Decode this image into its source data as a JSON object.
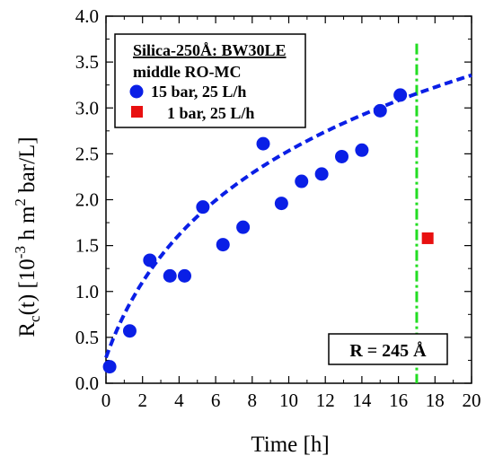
{
  "chart_data": {
    "type": "scatter",
    "xlabel": "Time [h]",
    "ylabel_main": "R",
    "ylabel_sub": "c",
    "ylabel_rest_a": "(t) [10",
    "ylabel_exp": "-3",
    "ylabel_rest_b": " h m",
    "ylabel_exp2": "2",
    "ylabel_rest_c": " bar/L]",
    "xlim": [
      0,
      20
    ],
    "ylim": [
      0,
      4
    ],
    "xticks": [
      0,
      2,
      4,
      6,
      8,
      10,
      12,
      14,
      16,
      18,
      20
    ],
    "yticks": [
      "0.0",
      "0.5",
      "1.0",
      "1.5",
      "2.0",
      "2.5",
      "3.0",
      "3.5",
      "4.0"
    ],
    "legend": {
      "placement": "top-left",
      "title_line1": "Silica-250Å: BW30LE",
      "title_line2": "middle RO-MC"
    },
    "series": [
      {
        "name": "15 bar, 25 L/h",
        "marker": "circle",
        "color": "#0a1fe6",
        "points": [
          [
            0.2,
            0.18
          ],
          [
            1.3,
            0.57
          ],
          [
            2.4,
            1.34
          ],
          [
            3.5,
            1.17
          ],
          [
            4.3,
            1.17
          ],
          [
            5.3,
            1.92
          ],
          [
            6.4,
            1.51
          ],
          [
            7.5,
            1.7
          ],
          [
            8.6,
            2.61
          ],
          [
            9.6,
            1.96
          ],
          [
            10.7,
            2.2
          ],
          [
            11.8,
            2.28
          ],
          [
            12.9,
            2.47
          ],
          [
            14.0,
            2.54
          ],
          [
            15.0,
            2.97
          ],
          [
            16.1,
            3.14
          ]
        ]
      },
      {
        "name": "1 bar, 25 L/h",
        "marker": "square",
        "color": "#e81010",
        "points": [
          [
            17.6,
            1.58
          ]
        ]
      }
    ],
    "fit": {
      "color": "#0a1fe6",
      "style": "dashed",
      "a": 0.28,
      "k": 1.4,
      "b": 0.4
    },
    "vline": {
      "x": 17.0,
      "color": "#22dd22",
      "style": "dash-dot",
      "label": "R = 245 Å"
    }
  }
}
